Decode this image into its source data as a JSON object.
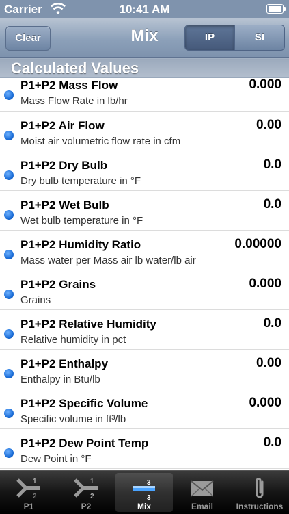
{
  "status_bar": {
    "carrier": "Carrier",
    "time": "10:41 AM"
  },
  "nav": {
    "clear_label": "Clear",
    "title": "Mix",
    "segments": [
      "IP",
      "SI"
    ],
    "selected_segment": "IP"
  },
  "section": {
    "title": "Calculated Values"
  },
  "rows": [
    {
      "title": "P1+P2 Mass Flow",
      "value": "0.000",
      "subtitle": "Mass Flow Rate in lb/hr"
    },
    {
      "title": "P1+P2 Air Flow",
      "value": "0.00",
      "subtitle": "Moist air volumetric flow rate in cfm"
    },
    {
      "title": "P1+P2 Dry Bulb",
      "value": "0.0",
      "subtitle": "Dry bulb temperature in °F"
    },
    {
      "title": "P1+P2 Wet Bulb",
      "value": "0.0",
      "subtitle": "Wet bulb temperature in  °F"
    },
    {
      "title": "P1+P2 Humidity Ratio",
      "value": "0.00000",
      "subtitle": "Mass water per Mass air lb water/lb air"
    },
    {
      "title": "P1+P2 Grains",
      "value": "0.000",
      "subtitle": "Grains"
    },
    {
      "title": "P1+P2 Relative Humidity",
      "value": "0.0",
      "subtitle": "Relative humidity in  pct"
    },
    {
      "title": "P1+P2 Enthalpy",
      "value": "0.00",
      "subtitle": "Enthalpy in  Btu/lb"
    },
    {
      "title": "P1+P2 Specific Volume",
      "value": "0.000",
      "subtitle": "Specific volume in  ft³/lb"
    },
    {
      "title": "P1+P2 Dew Point Temp",
      "value": "0.0",
      "subtitle": "Dew Point in  °F"
    }
  ],
  "tabs": [
    {
      "label": "P1",
      "icon": "merge-p1-icon"
    },
    {
      "label": "P2",
      "icon": "merge-p2-icon"
    },
    {
      "label": "Mix",
      "icon": "mix-icon",
      "active": true
    },
    {
      "label": "Email",
      "icon": "envelope-icon"
    },
    {
      "label": "Instructions",
      "icon": "paperclip-icon"
    }
  ],
  "colors": {
    "nav_blue": "#8ca0b9",
    "dot_blue": "#1c6ed8",
    "tab_bar": "#151515"
  }
}
